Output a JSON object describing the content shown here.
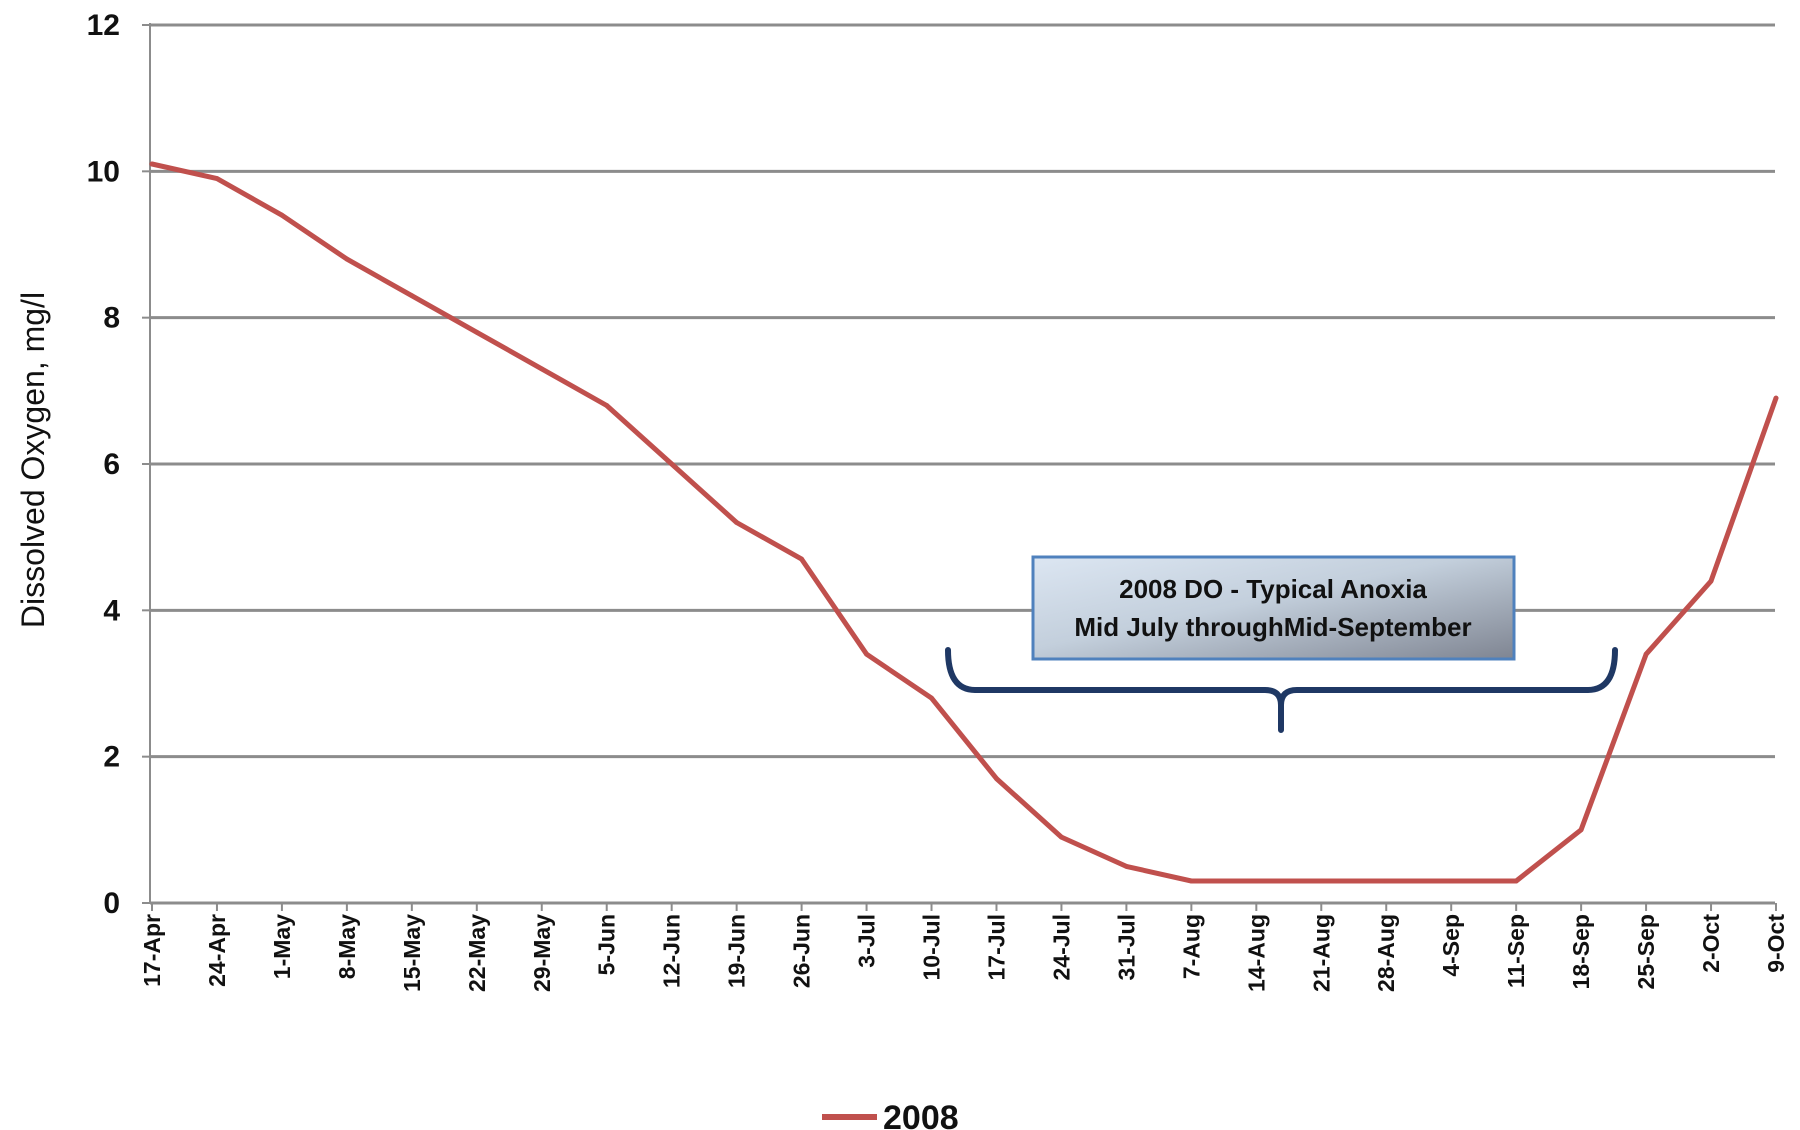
{
  "chart_data": {
    "type": "line",
    "ylabel": "Dissolved Oxygen, mg/l",
    "xlabel": "",
    "ylim": [
      0,
      12
    ],
    "y_ticks": [
      0,
      2,
      4,
      6,
      8,
      10,
      12
    ],
    "grid": true,
    "legend_position": "bottom",
    "categories": [
      "17-Apr",
      "24-Apr",
      "1-May",
      "8-May",
      "15-May",
      "22-May",
      "29-May",
      "5-Jun",
      "12-Jun",
      "19-Jun",
      "26-Jun",
      "3-Jul",
      "10-Jul",
      "17-Jul",
      "24-Jul",
      "31-Jul",
      "7-Aug",
      "14-Aug",
      "21-Aug",
      "28-Aug",
      "4-Sep",
      "11-Sep",
      "18-Sep",
      "25-Sep",
      "2-Oct",
      "9-Oct"
    ],
    "series": [
      {
        "name": "2008",
        "color": "#c0504d",
        "values": [
          10.1,
          9.9,
          9.4,
          8.8,
          8.3,
          7.8,
          7.3,
          6.8,
          6.0,
          5.2,
          4.7,
          3.4,
          2.8,
          1.7,
          0.9,
          0.5,
          0.3,
          0.3,
          0.3,
          0.3,
          0.3,
          0.3,
          1.0,
          3.4,
          4.4,
          6.9
        ]
      }
    ],
    "annotation": {
      "lines": [
        "2008 DO - Typical Anoxia",
        "Mid July throughMid-September"
      ],
      "bracket_color": "#1f3864",
      "box_border_color": "#4f81bd"
    }
  }
}
